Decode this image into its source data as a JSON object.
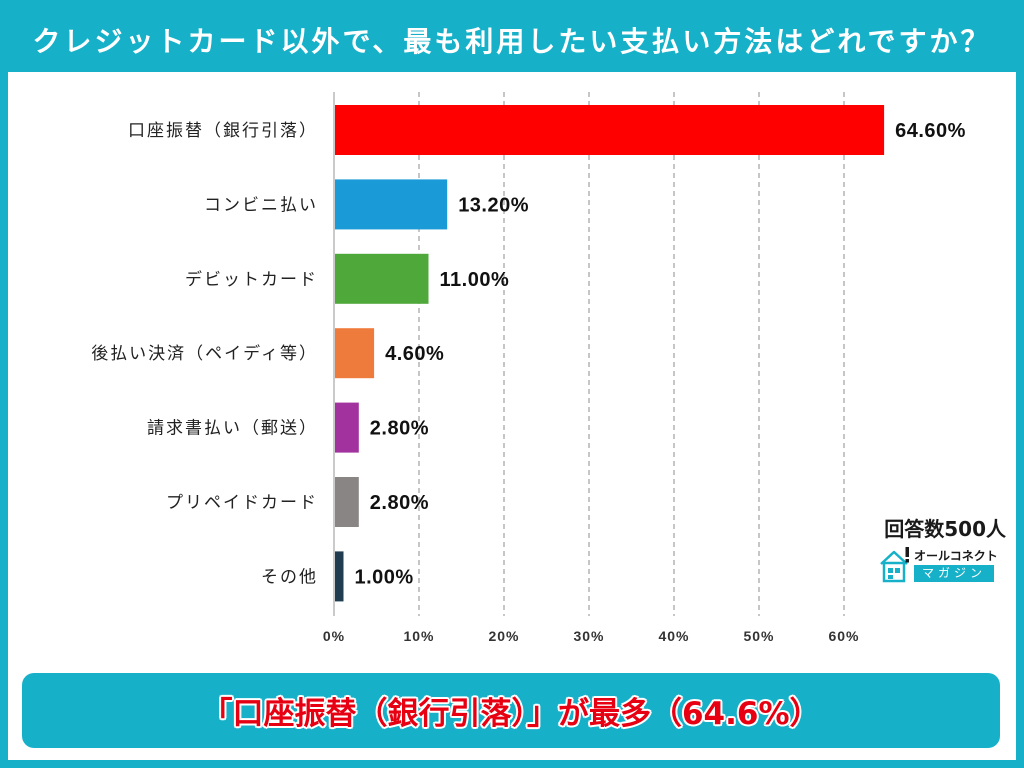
{
  "respondents": "回答数500人",
  "logo": {
    "icon": "house-icon",
    "line1": "オールコネクト",
    "line2": "マガジン"
  },
  "summary": "「口座振替（銀行引落）」が最多（64.6%）",
  "colors": {
    "frame": "#16b1c9",
    "summary_text": "#e60012"
  },
  "chart_data": {
    "type": "bar",
    "orientation": "horizontal",
    "title": "クレジットカード以外で、最も利用したい支払い方法はどれですか？",
    "categories": [
      "口座振替（銀行引落）",
      "コンビニ払い",
      "デビットカード",
      "後払い決済（ペイディ等）",
      "請求書払い（郵送）",
      "プリペイドカード",
      "その他"
    ],
    "values": [
      64.6,
      13.2,
      11.0,
      4.6,
      2.8,
      2.8,
      1.0
    ],
    "value_labels": [
      "64.60%",
      "13.20%",
      "11.00%",
      "4.60%",
      "2.80%",
      "2.80%",
      "1.00%"
    ],
    "colors": [
      "#ff0000",
      "#1a9bd7",
      "#4fa83a",
      "#ee7b3c",
      "#a2329e",
      "#8a8585",
      "#1f3c50"
    ],
    "x_ticks": [
      0,
      10,
      20,
      30,
      40,
      50,
      60
    ],
    "x_tick_labels": [
      "0%",
      "10%",
      "20%",
      "30%",
      "40%",
      "50%",
      "60%"
    ],
    "xlim": [
      0,
      70
    ],
    "grid": true
  }
}
